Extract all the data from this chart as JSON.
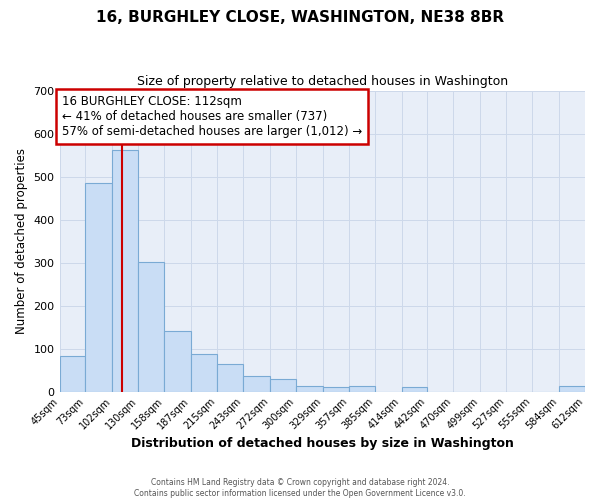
{
  "title": "16, BURGHLEY CLOSE, WASHINGTON, NE38 8BR",
  "subtitle": "Size of property relative to detached houses in Washington",
  "xlabel": "Distribution of detached houses by size in Washington",
  "ylabel": "Number of detached properties",
  "bin_edges": [
    45,
    73,
    102,
    130,
    158,
    187,
    215,
    243,
    272,
    300,
    329,
    357,
    385,
    414,
    442,
    470,
    499,
    527,
    555,
    584,
    612
  ],
  "bar_heights": [
    82,
    484,
    562,
    302,
    140,
    87,
    63,
    36,
    30,
    14,
    10,
    13,
    0,
    10,
    0,
    0,
    0,
    0,
    0,
    12
  ],
  "bar_color": "#c9ddf5",
  "bar_edge_color": "#7aaad4",
  "ylim": [
    0,
    700
  ],
  "yticks": [
    0,
    100,
    200,
    300,
    400,
    500,
    600,
    700
  ],
  "vline_x": 112,
  "vline_color": "#cc0000",
  "annotation_title": "16 BURGHLEY CLOSE: 112sqm",
  "annotation_line1": "← 41% of detached houses are smaller (737)",
  "annotation_line2": "57% of semi-detached houses are larger (1,012) →",
  "annotation_box_color": "white",
  "annotation_box_edge_color": "#cc0000",
  "tick_labels": [
    "45sqm",
    "73sqm",
    "102sqm",
    "130sqm",
    "158sqm",
    "187sqm",
    "215sqm",
    "243sqm",
    "272sqm",
    "300sqm",
    "329sqm",
    "357sqm",
    "385sqm",
    "414sqm",
    "442sqm",
    "470sqm",
    "499sqm",
    "527sqm",
    "555sqm",
    "584sqm",
    "612sqm"
  ],
  "footer_line1": "Contains HM Land Registry data © Crown copyright and database right 2024.",
  "footer_line2": "Contains public sector information licensed under the Open Government Licence v3.0.",
  "grid_color": "#cdd8ea",
  "background_color": "#e8eef8",
  "fig_width": 6.0,
  "fig_height": 5.0,
  "dpi": 100
}
